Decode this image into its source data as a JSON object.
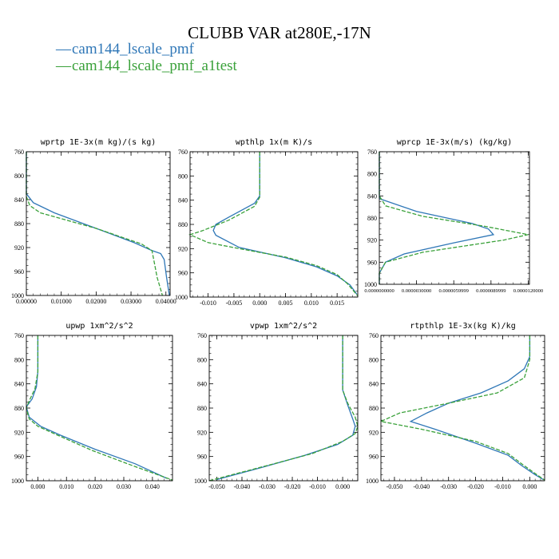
{
  "figure": {
    "title": "CLUBB VAR at280E,-17N",
    "legend": [
      {
        "label": "cam144_lscale_pmf",
        "color": "#2f77b7"
      },
      {
        "label": "cam144_lscale_pmf_a1test",
        "color": "#3aa13a"
      }
    ]
  },
  "chart_data": [
    {
      "type": "line",
      "title": "wprtp   1E-3x(m kg)/(s kg)",
      "xlim": [
        0.0,
        0.0412
      ],
      "ylim": [
        760,
        1000
      ],
      "y_inverted": true,
      "xticks": [
        0.0,
        0.01,
        0.02,
        0.03,
        0.04
      ],
      "xtick_labels": [
        "0.00000",
        "0.01000",
        "0.02000",
        "0.03000",
        "0.04000"
      ],
      "yticks": [
        760,
        800,
        840,
        880,
        920,
        960,
        1000
      ],
      "ytick_labels": [
        "760",
        "800",
        "840",
        "880",
        "920",
        "960",
        "1000"
      ],
      "series": [
        {
          "color": "#2f77b7",
          "dash": "",
          "points": [
            [
              0.0,
              760
            ],
            [
              0.0,
              800
            ],
            [
              0.0,
              830
            ],
            [
              0.002,
              845
            ],
            [
              0.008,
              862
            ],
            [
              0.02,
              888
            ],
            [
              0.031,
              912
            ],
            [
              0.036,
              925
            ],
            [
              0.0385,
              930
            ],
            [
              0.0395,
              940
            ],
            [
              0.0402,
              970
            ],
            [
              0.041,
              1000
            ]
          ]
        },
        {
          "color": "#3aa13a",
          "dash": "5,2",
          "points": [
            [
              0.0,
              760
            ],
            [
              0.0,
              800
            ],
            [
              0.0,
              835
            ],
            [
              0.001,
              850
            ],
            [
              0.004,
              862
            ],
            [
              0.02,
              888
            ],
            [
              0.033,
              914
            ],
            [
              0.036,
              925
            ],
            [
              0.0365,
              940
            ],
            [
              0.0375,
              970
            ],
            [
              0.039,
              1000
            ]
          ]
        }
      ]
    },
    {
      "type": "line",
      "title": "wpthlp   1x(m K)/s",
      "xlim": [
        -0.0135,
        0.019
      ],
      "ylim": [
        760,
        1000
      ],
      "y_inverted": true,
      "xticks": [
        -0.01,
        -0.005,
        0.0,
        0.005,
        0.01,
        0.015
      ],
      "xtick_labels": [
        "-0.010",
        "-0.005",
        "0.000",
        "0.005",
        "0.010",
        "0.015"
      ],
      "yticks": [
        760,
        800,
        840,
        880,
        920,
        960,
        1000
      ],
      "ytick_labels": [
        "760",
        "800",
        "840",
        "880",
        "920",
        "960",
        "1000"
      ],
      "series": [
        {
          "color": "#2f77b7",
          "dash": "",
          "points": [
            [
              0.0,
              760
            ],
            [
              0.0,
              800
            ],
            [
              0.0,
              833
            ],
            [
              -0.001,
              845
            ],
            [
              -0.006,
              868
            ],
            [
              -0.0085,
              880
            ],
            [
              -0.009,
              890
            ],
            [
              -0.0085,
              898
            ],
            [
              -0.004,
              918
            ],
            [
              0.005,
              935
            ],
            [
              0.011,
              950
            ],
            [
              0.015,
              965
            ],
            [
              0.0175,
              980
            ],
            [
              0.0188,
              995
            ]
          ]
        },
        {
          "color": "#3aa13a",
          "dash": "5,2",
          "points": [
            [
              0.0,
              760
            ],
            [
              0.0,
              800
            ],
            [
              0.0,
              835
            ],
            [
              -0.001,
              850
            ],
            [
              -0.006,
              873
            ],
            [
              -0.011,
              890
            ],
            [
              -0.0135,
              897
            ],
            [
              -0.01,
              910
            ],
            [
              -0.004,
              920
            ],
            [
              0.005,
              934
            ],
            [
              0.011,
              948
            ],
            [
              0.015,
              963
            ],
            [
              0.017,
              978
            ],
            [
              0.019,
              998
            ]
          ]
        }
      ]
    },
    {
      "type": "line",
      "title": "wprcp   1E-3x(m/s) (kg/kg)",
      "xlim": [
        0.0,
        1.21e-05
      ],
      "ylim": [
        760,
        1000
      ],
      "y_inverted": true,
      "xticks": [
        0.0,
        3e-06,
        6e-06,
        9e-06,
        1.2e-05
      ],
      "xtick_labels": [
        "0.0000000000",
        "0.0000030000",
        "0.0000059999",
        "0.0000089999",
        "0.0000120000"
      ],
      "yticks": [
        760,
        800,
        840,
        880,
        920,
        960,
        1000
      ],
      "ytick_labels": [
        "760",
        "800",
        "840",
        "880",
        "920",
        "960",
        "1000"
      ],
      "series": [
        {
          "color": "#2f77b7",
          "dash": "",
          "points": [
            [
              0.0,
              760
            ],
            [
              0.0,
              830
            ],
            [
              5e-09,
              845
            ],
            [
              3e-06,
              868
            ],
            [
              7.5e-06,
              890
            ],
            [
              8.8e-06,
              900
            ],
            [
              9.2e-06,
              910
            ],
            [
              6e-06,
              925
            ],
            [
              2e-06,
              945
            ],
            [
              5e-07,
              960
            ],
            [
              0.0,
              980
            ],
            [
              0.0,
              1000
            ]
          ]
        },
        {
          "color": "#3aa13a",
          "dash": "5,2",
          "points": [
            [
              0.0,
              760
            ],
            [
              0.0,
              840
            ],
            [
              5e-07,
              858
            ],
            [
              3.5e-06,
              877
            ],
            [
              8.5e-06,
              895
            ],
            [
              1.2e-05,
              910
            ],
            [
              1e-05,
              920
            ],
            [
              3.5e-06,
              942
            ],
            [
              5e-07,
              960
            ],
            [
              0.0,
              980
            ],
            [
              0.0,
              1000
            ]
          ]
        }
      ]
    },
    {
      "type": "line",
      "title": "upwp   1xm^2/s^2",
      "xlim": [
        -0.004,
        0.047
      ],
      "ylim": [
        760,
        1000
      ],
      "y_inverted": true,
      "xticks": [
        0.0,
        0.01,
        0.02,
        0.03,
        0.04
      ],
      "xtick_labels": [
        "0.000",
        "0.010",
        "0.020",
        "0.030",
        "0.040"
      ],
      "yticks": [
        760,
        800,
        840,
        880,
        920,
        960,
        1000
      ],
      "ytick_labels": [
        "760",
        "800",
        "840",
        "880",
        "920",
        "960",
        "1000"
      ],
      "series": [
        {
          "color": "#2f77b7",
          "dash": "",
          "points": [
            [
              0.0,
              760
            ],
            [
              0.0,
              820
            ],
            [
              -0.0005,
              845
            ],
            [
              -0.002,
              865
            ],
            [
              -0.004,
              878
            ],
            [
              -0.003,
              895
            ],
            [
              0.001,
              910
            ],
            [
              0.008,
              925
            ],
            [
              0.02,
              948
            ],
            [
              0.034,
              972
            ],
            [
              0.045,
              996
            ]
          ]
        },
        {
          "color": "#3aa13a",
          "dash": "5,2",
          "points": [
            [
              0.0,
              760
            ],
            [
              0.0,
              820
            ],
            [
              -0.001,
              848
            ],
            [
              -0.003,
              868
            ],
            [
              -0.004,
              880
            ],
            [
              -0.003,
              898
            ],
            [
              0.0,
              910
            ],
            [
              0.007,
              925
            ],
            [
              0.019,
              950
            ],
            [
              0.033,
              975
            ],
            [
              0.047,
              999
            ]
          ]
        }
      ]
    },
    {
      "type": "line",
      "title": "vpwp   1xm^2/s^2",
      "xlim": [
        -0.053,
        0.006
      ],
      "ylim": [
        760,
        1000
      ],
      "y_inverted": true,
      "xticks": [
        -0.05,
        -0.04,
        -0.03,
        -0.02,
        -0.01,
        0.0
      ],
      "xtick_labels": [
        "-0.050",
        "-0.040",
        "-0.030",
        "-0.020",
        "-0.010",
        "0.000"
      ],
      "yticks": [
        760,
        800,
        840,
        880,
        920,
        960,
        1000
      ],
      "ytick_labels": [
        "760",
        "800",
        "840",
        "880",
        "920",
        "960",
        "1000"
      ],
      "series": [
        {
          "color": "#2f77b7",
          "dash": "",
          "points": [
            [
              0.0,
              760
            ],
            [
              0.0,
              850
            ],
            [
              0.002,
              875
            ],
            [
              0.004,
              898
            ],
            [
              0.005,
              910
            ],
            [
              0.004,
              925
            ],
            [
              -0.002,
              940
            ],
            [
              -0.015,
              958
            ],
            [
              -0.032,
              978
            ],
            [
              -0.05,
              998
            ]
          ]
        },
        {
          "color": "#3aa13a",
          "dash": "5,2",
          "points": [
            [
              0.0,
              760
            ],
            [
              0.0,
              850
            ],
            [
              0.002,
              872
            ],
            [
              0.005,
              895
            ],
            [
              0.006,
              910
            ],
            [
              0.005,
              922
            ],
            [
              0.0,
              935
            ],
            [
              -0.012,
              955
            ],
            [
              -0.03,
              975
            ],
            [
              -0.053,
              1000
            ]
          ]
        }
      ]
    },
    {
      "type": "line",
      "title": "rtpthlp   1E-3x(kg K)/kg",
      "xlim": [
        -0.055,
        0.0055
      ],
      "ylim": [
        760,
        1000
      ],
      "y_inverted": true,
      "xticks": [
        -0.05,
        -0.04,
        -0.03,
        -0.02,
        -0.01,
        0.0
      ],
      "xtick_labels": [
        "-0.050",
        "-0.040",
        "-0.030",
        "-0.020",
        "-0.010",
        "0.000"
      ],
      "yticks": [
        760,
        800,
        840,
        880,
        920,
        960,
        1000
      ],
      "ytick_labels": [
        "760",
        "800",
        "840",
        "880",
        "920",
        "960",
        "1000"
      ],
      "series": [
        {
          "color": "#2f77b7",
          "dash": "",
          "points": [
            [
              0.0,
              760
            ],
            [
              0.0,
              795
            ],
            [
              -0.002,
              815
            ],
            [
              -0.008,
              835
            ],
            [
              -0.018,
              855
            ],
            [
              -0.03,
              872
            ],
            [
              -0.038,
              888
            ],
            [
              -0.044,
              902
            ],
            [
              -0.035,
              915
            ],
            [
              -0.02,
              938
            ],
            [
              -0.008,
              958
            ],
            [
              -0.003,
              975
            ],
            [
              0.002,
              990
            ],
            [
              0.005,
              998
            ]
          ]
        },
        {
          "color": "#3aa13a",
          "dash": "5,2",
          "points": [
            [
              0.0,
              760
            ],
            [
              0.0,
              800
            ],
            [
              -0.002,
              830
            ],
            [
              -0.012,
              855
            ],
            [
              -0.03,
              872
            ],
            [
              -0.048,
              888
            ],
            [
              -0.055,
              902
            ],
            [
              -0.04,
              915
            ],
            [
              -0.02,
              935
            ],
            [
              -0.008,
              955
            ],
            [
              -0.003,
              972
            ],
            [
              0.002,
              988
            ],
            [
              0.0055,
              999
            ]
          ]
        }
      ]
    }
  ]
}
